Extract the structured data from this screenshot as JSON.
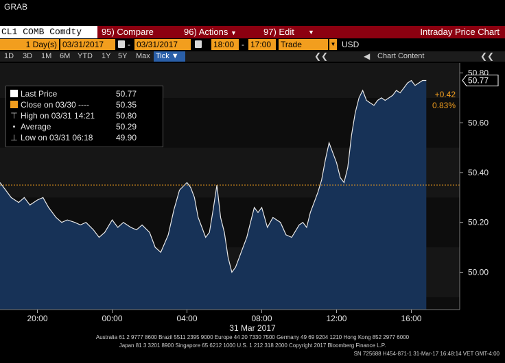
{
  "window_title": "GRAB",
  "toolbar": {
    "ticker": "CL1 COMB Comdty",
    "compare": {
      "num": "95)",
      "label": "Compare"
    },
    "actions": {
      "num": "96)",
      "label": "Actions"
    },
    "edit": {
      "num": "97)",
      "label": "Edit"
    },
    "title": "Intraday Price Chart"
  },
  "datebar": {
    "period": "1 Day(s)",
    "start_date": "03/31/2017",
    "dash": "-",
    "end_date": "03/31/2017",
    "start_time": "18:00",
    "time_dash": "-",
    "end_time": "17:00",
    "field": "Trade",
    "currency": "USD"
  },
  "rangebar": {
    "ranges": [
      "1D",
      "3D",
      "1M",
      "6M",
      "YTD",
      "1Y",
      "5Y",
      "Max"
    ],
    "tick_label": "Tick ▼",
    "chart_content": "Chart Content"
  },
  "legend": {
    "rows": [
      {
        "label": "Last Price",
        "value": "50.77"
      },
      {
        "label": "Close on 03/30 ----",
        "value": "50.35"
      },
      {
        "label": "High on 03/31 14:21",
        "value": "50.80"
      },
      {
        "label": "Average",
        "value": "50.29"
      },
      {
        "label": "Low on 03/31 06:18",
        "value": "49.90"
      }
    ]
  },
  "badges": {
    "last_price": "50.77",
    "change": "+0.42",
    "change_pct": "0.83%"
  },
  "colors": {
    "accent_orange": "#f29e1e",
    "function_red": "#8c0010",
    "area_fill": "#173257",
    "close_line": "#f29e1e"
  },
  "footer": {
    "line1": "Australia 61 2 9777 8600 Brazil 5511 2395 9000 Europe 44 20 7330 7500 Germany 49 69 9204 1210 Hong Kong 852 2977 6000",
    "line2": "Japan 81 3 3201 8900        Singapore 65 6212 1000        U.S. 1 212 318 2000              Copyright 2017 Bloomberg Finance L.P.",
    "line3": "SN 725688 H454-871-1 31-Mar-17 16:48:14 VET  GMT-4:00"
  },
  "chart_data": {
    "type": "area",
    "title": "Intraday Price Chart",
    "xlabel": "31 Mar 2017",
    "ylabel": "",
    "x_ticks": [
      "20:00",
      "00:00",
      "04:00",
      "08:00",
      "12:00",
      "16:00"
    ],
    "y_ticks": [
      50.0,
      50.2,
      50.4,
      50.6,
      50.8
    ],
    "y_tick_labels": [
      "50.00",
      "50.20",
      "50.40",
      "50.60",
      "50.80"
    ],
    "ylim": [
      49.85,
      50.84
    ],
    "x_range_hours": [
      18,
      40.9
    ],
    "close_value": 50.35,
    "grid": false,
    "legend_position": "top-left",
    "series": [
      {
        "name": "Last Price",
        "x_hours": [
          18.0,
          18.3,
          18.6,
          19.0,
          19.3,
          19.6,
          20.0,
          20.3,
          20.6,
          21.0,
          21.3,
          21.6,
          22.0,
          22.3,
          22.6,
          23.0,
          23.3,
          23.6,
          24.0,
          24.3,
          24.6,
          25.0,
          25.3,
          25.6,
          26.0,
          26.3,
          26.6,
          27.0,
          27.3,
          27.6,
          28.0,
          28.2,
          28.4,
          28.6,
          28.8,
          29.0,
          29.2,
          29.4,
          29.6,
          29.8,
          30.0,
          30.2,
          30.4,
          30.6,
          30.8,
          31.0,
          31.2,
          31.4,
          31.6,
          31.8,
          32.0,
          32.3,
          32.6,
          33.0,
          33.3,
          33.6,
          34.0,
          34.2,
          34.4,
          34.6,
          34.8,
          35.0,
          35.2,
          35.4,
          35.6,
          35.8,
          36.0,
          36.2,
          36.4,
          36.6,
          36.8,
          37.0,
          37.2,
          37.4,
          37.6,
          37.8,
          38.0,
          38.2,
          38.4,
          38.6,
          38.8,
          39.0,
          39.2,
          39.4,
          39.6,
          39.8,
          40.0,
          40.2,
          40.4,
          40.6,
          40.8
        ],
        "values": [
          50.36,
          50.33,
          50.3,
          50.28,
          50.3,
          50.27,
          50.29,
          50.3,
          50.26,
          50.22,
          50.2,
          50.21,
          50.2,
          50.19,
          50.2,
          50.17,
          50.14,
          50.16,
          50.21,
          50.18,
          50.2,
          50.18,
          50.17,
          50.19,
          50.16,
          50.1,
          50.08,
          50.15,
          50.25,
          50.33,
          50.36,
          50.34,
          50.3,
          50.22,
          50.18,
          50.14,
          50.16,
          50.25,
          50.35,
          50.22,
          50.16,
          50.06,
          50.0,
          50.02,
          50.06,
          50.1,
          50.14,
          50.2,
          50.26,
          50.24,
          50.26,
          50.18,
          50.22,
          50.2,
          50.15,
          50.14,
          50.19,
          50.2,
          50.18,
          50.24,
          50.28,
          50.32,
          50.37,
          50.45,
          50.52,
          50.48,
          50.44,
          50.38,
          50.36,
          50.42,
          50.55,
          50.64,
          50.7,
          50.73,
          50.69,
          50.68,
          50.67,
          50.69,
          50.7,
          50.69,
          50.7,
          50.71,
          50.73,
          50.72,
          50.74,
          50.76,
          50.77,
          50.75,
          50.76,
          50.77,
          50.77
        ]
      },
      {
        "name": "Close on 03/30",
        "values": [
          50.35
        ]
      }
    ]
  }
}
